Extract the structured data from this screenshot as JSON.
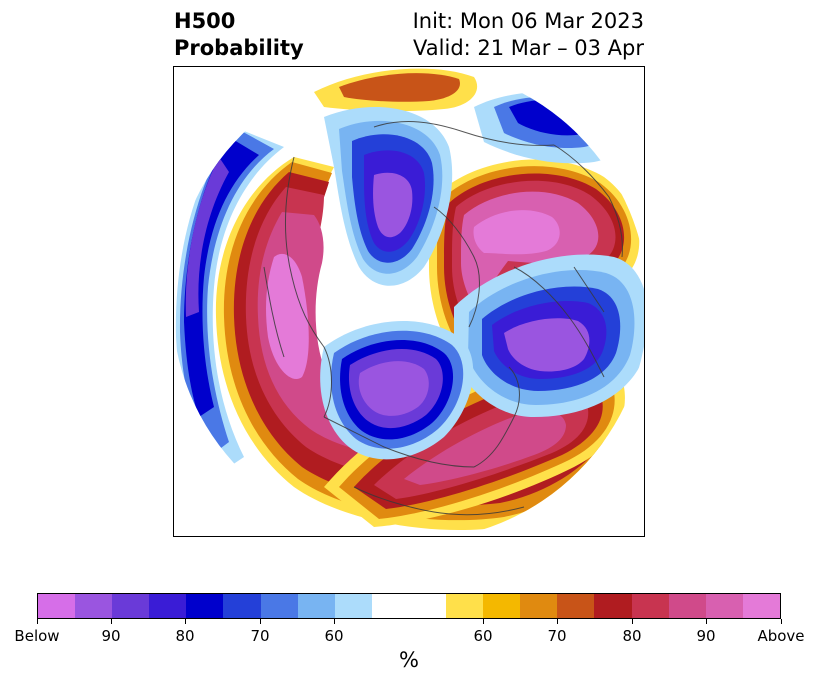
{
  "title": {
    "left_line1": "H500",
    "left_line2": "Probability",
    "right_line1": "Init: Mon 06 Mar 2023",
    "right_line2": "Valid: 21 Mar – 03 Apr"
  },
  "colorbar": {
    "unit": "%",
    "colors": [
      "#d66ee8",
      "#9a55e0",
      "#6a3ad8",
      "#3a1cd6",
      "#0000cc",
      "#2440d8",
      "#4a78e6",
      "#78b4f2",
      "#acdcfb",
      "#ffffff",
      "#ffe04a",
      "#f4b800",
      "#e08a10",
      "#c85418",
      "#b01c20",
      "#c83450",
      "#d04a8a",
      "#d860b0",
      "#e47ad8"
    ],
    "tick_labels": [
      "Below",
      "90",
      "80",
      "70",
      "60",
      "60",
      "70",
      "80",
      "90",
      "Above"
    ]
  },
  "map": {
    "projection": "north-polar-stereographic",
    "anomalies": [
      {
        "region": "western North America / Alaska",
        "sign": "above"
      },
      {
        "region": "Greenland / Arctic",
        "sign": "above"
      },
      {
        "region": "North Atlantic to Europe",
        "sign": "above"
      },
      {
        "region": "central Canada",
        "sign": "below"
      },
      {
        "region": "Scandinavia / northern Europe",
        "sign": "below"
      },
      {
        "region": "eastern Siberia",
        "sign": "below"
      },
      {
        "region": "North Pacific / Bering Sea",
        "sign": "below"
      }
    ]
  }
}
